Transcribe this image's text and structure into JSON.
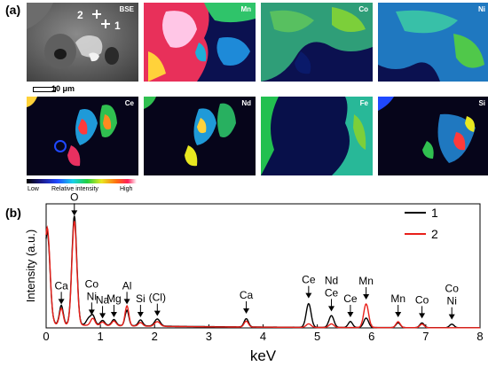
{
  "panel_a": {
    "label": "(a)",
    "maps": [
      "BSE",
      "Mn",
      "Co",
      "Ni",
      "Ce",
      "Nd",
      "Fe",
      "Si"
    ],
    "bse_markers": [
      "2",
      "1"
    ],
    "scale_bar": "10 μm",
    "colorbar": {
      "low": "Low",
      "title": "Relative intensity",
      "high": "High"
    }
  },
  "panel_b": {
    "label": "(b)"
  },
  "chart_data": {
    "type": "line",
    "xlabel": "keV",
    "ylabel": "Intensity (a.u.)",
    "xlim": [
      0,
      8
    ],
    "ylim": [
      0,
      1.05
    ],
    "x_ticks": [
      0,
      1,
      2,
      3,
      4,
      5,
      6,
      7,
      8
    ],
    "grid": false,
    "legend_position": "top-right",
    "series": [
      {
        "name": "1",
        "color": "#000000",
        "baseline": 0.035,
        "peaks": [
          {
            "x": 0.02,
            "h": 0.78,
            "w": 0.05
          },
          {
            "x": 0.28,
            "h": 0.16,
            "w": 0.035
          },
          {
            "x": 0.52,
            "h": 0.92,
            "w": 0.045
          },
          {
            "x": 0.78,
            "h": 0.05,
            "w": 0.04
          },
          {
            "x": 0.86,
            "h": 0.08,
            "w": 0.04
          },
          {
            "x": 1.04,
            "h": 0.04,
            "w": 0.04
          },
          {
            "x": 1.25,
            "h": 0.05,
            "w": 0.04
          },
          {
            "x": 1.49,
            "h": 0.13,
            "w": 0.035
          },
          {
            "x": 1.74,
            "h": 0.05,
            "w": 0.04
          },
          {
            "x": 2.05,
            "h": 0.06,
            "w": 0.05
          },
          {
            "x": 3.69,
            "h": 0.07,
            "w": 0.04
          },
          {
            "x": 4.84,
            "h": 0.2,
            "w": 0.045
          },
          {
            "x": 5.26,
            "h": 0.1,
            "w": 0.045
          },
          {
            "x": 5.61,
            "h": 0.05,
            "w": 0.04
          },
          {
            "x": 5.9,
            "h": 0.08,
            "w": 0.045
          },
          {
            "x": 6.49,
            "h": 0.04,
            "w": 0.04
          },
          {
            "x": 6.93,
            "h": 0.04,
            "w": 0.04
          },
          {
            "x": 7.48,
            "h": 0.03,
            "w": 0.04
          }
        ]
      },
      {
        "name": "2",
        "color": "#e8201a",
        "baseline": 0.03,
        "peaks": [
          {
            "x": 0.02,
            "h": 0.82,
            "w": 0.05
          },
          {
            "x": 0.28,
            "h": 0.14,
            "w": 0.035
          },
          {
            "x": 0.52,
            "h": 0.88,
            "w": 0.045
          },
          {
            "x": 0.86,
            "h": 0.06,
            "w": 0.04
          },
          {
            "x": 1.04,
            "h": 0.03,
            "w": 0.04
          },
          {
            "x": 1.25,
            "h": 0.04,
            "w": 0.04
          },
          {
            "x": 1.49,
            "h": 0.17,
            "w": 0.035
          },
          {
            "x": 1.74,
            "h": 0.03,
            "w": 0.04
          },
          {
            "x": 2.05,
            "h": 0.04,
            "w": 0.05
          },
          {
            "x": 3.69,
            "h": 0.05,
            "w": 0.04
          },
          {
            "x": 4.84,
            "h": 0.03,
            "w": 0.045
          },
          {
            "x": 5.26,
            "h": 0.03,
            "w": 0.045
          },
          {
            "x": 5.9,
            "h": 0.2,
            "w": 0.045
          },
          {
            "x": 6.49,
            "h": 0.05,
            "w": 0.04
          },
          {
            "x": 6.93,
            "h": 0.03,
            "w": 0.04
          }
        ]
      }
    ],
    "annotations": [
      {
        "lines": [
          "Ca"
        ],
        "x": 0.28,
        "tip_y": 0.2
      },
      {
        "lines": [
          "O"
        ],
        "x": 0.52,
        "tip_y": 0.95
      },
      {
        "lines": [
          "Co",
          "Ni"
        ],
        "x": 0.84,
        "tip_y": 0.11
      },
      {
        "lines": [
          "Na"
        ],
        "x": 1.04,
        "tip_y": 0.08
      },
      {
        "lines": [
          "Mg"
        ],
        "x": 1.25,
        "tip_y": 0.09
      },
      {
        "lines": [
          "Al"
        ],
        "x": 1.49,
        "tip_y": 0.2
      },
      {
        "lines": [
          "Si"
        ],
        "x": 1.74,
        "tip_y": 0.09
      },
      {
        "lines": [
          "(Cl)"
        ],
        "x": 2.05,
        "tip_y": 0.1
      },
      {
        "lines": [
          "Ca"
        ],
        "x": 3.69,
        "tip_y": 0.12
      },
      {
        "lines": [
          "Ce"
        ],
        "x": 4.84,
        "tip_y": 0.25
      },
      {
        "lines": [
          "Nd",
          "Ce"
        ],
        "x": 5.26,
        "tip_y": 0.14
      },
      {
        "lines": [
          "Ce"
        ],
        "x": 5.61,
        "tip_y": 0.09
      },
      {
        "lines": [
          "Mn"
        ],
        "x": 5.9,
        "tip_y": 0.24
      },
      {
        "lines": [
          "Mn"
        ],
        "x": 6.49,
        "tip_y": 0.09
      },
      {
        "lines": [
          "Co"
        ],
        "x": 6.93,
        "tip_y": 0.08
      },
      {
        "lines": [
          "Co",
          "Ni"
        ],
        "x": 7.48,
        "tip_y": 0.07
      }
    ]
  }
}
